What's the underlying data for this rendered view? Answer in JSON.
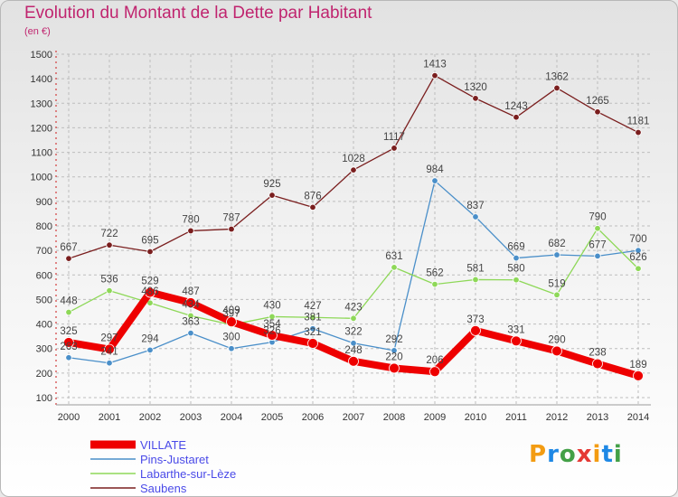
{
  "title": "Evolution du Montant de la Dette par Habitant",
  "unit": "(en €)",
  "brand": "Proxiti",
  "chart_data": {
    "type": "line",
    "x": [
      2000,
      2001,
      2002,
      2003,
      2004,
      2005,
      2006,
      2007,
      2008,
      2009,
      2010,
      2011,
      2012,
      2013,
      2014
    ],
    "ylim": [
      100,
      1500
    ],
    "yticks": [
      100,
      200,
      300,
      400,
      500,
      600,
      700,
      800,
      900,
      1000,
      1100,
      1200,
      1300,
      1400,
      1500
    ],
    "grid": true,
    "legend_position": "bottom-left",
    "series": [
      {
        "name": "Saubens",
        "color": "#7a1e1e",
        "labeled": true,
        "width": 1.3,
        "values": [
          667,
          722,
          695,
          780,
          787,
          925,
          876,
          1028,
          1117,
          1413,
          1320,
          1243,
          1362,
          1265,
          1181
        ]
      },
      {
        "name": "Pins-Justaret",
        "color": "#4a8fc9",
        "labeled": false,
        "width": 1.3,
        "values": [
          263,
          241,
          294,
          363,
          300,
          326,
          381,
          322,
          292,
          984,
          837,
          669,
          682,
          677,
          700
        ]
      },
      {
        "name": "Labarthe-sur-Lèze",
        "color": "#8ed858",
        "labeled": false,
        "width": 1.3,
        "values": [
          448,
          536,
          486,
          434,
          397,
          430,
          427,
          423,
          631,
          562,
          581,
          580,
          519,
          790,
          626
        ]
      },
      {
        "name": "VILLATE",
        "color": "#ee0000",
        "labeled": true,
        "width": 8,
        "values": [
          325,
          297,
          529,
          487,
          409,
          354,
          321,
          248,
          220,
          206,
          373,
          331,
          290,
          238,
          189
        ]
      }
    ],
    "legend": [
      "VILLATE",
      "Pins-Justaret",
      "Labarthe-sur-Lèze",
      "Saubens"
    ],
    "data_labels": {
      "Saubens": [
        "667",
        "722",
        "695",
        "780",
        "787",
        "925",
        "876",
        "1028",
        "1117",
        "1413",
        "1320",
        "1243",
        "1362",
        "1265",
        "1181"
      ],
      "Pins-Justaret": [
        "263",
        "241",
        "294",
        "363",
        "300",
        "326",
        "381",
        "322",
        "292",
        "984",
        "837",
        "669",
        "682",
        "677",
        "700"
      ],
      "Labarthe-sur-Lèze": [
        "448",
        "536",
        "486",
        "434",
        "397",
        "430",
        "427",
        "423",
        "631",
        "562",
        "581",
        "580",
        "519",
        "790",
        "626"
      ],
      "VILLATE": [
        "325",
        "297",
        "529",
        "487",
        "409",
        "354",
        "321",
        "248",
        "220",
        "206",
        "373",
        "331",
        "290",
        "238",
        "189"
      ]
    }
  }
}
